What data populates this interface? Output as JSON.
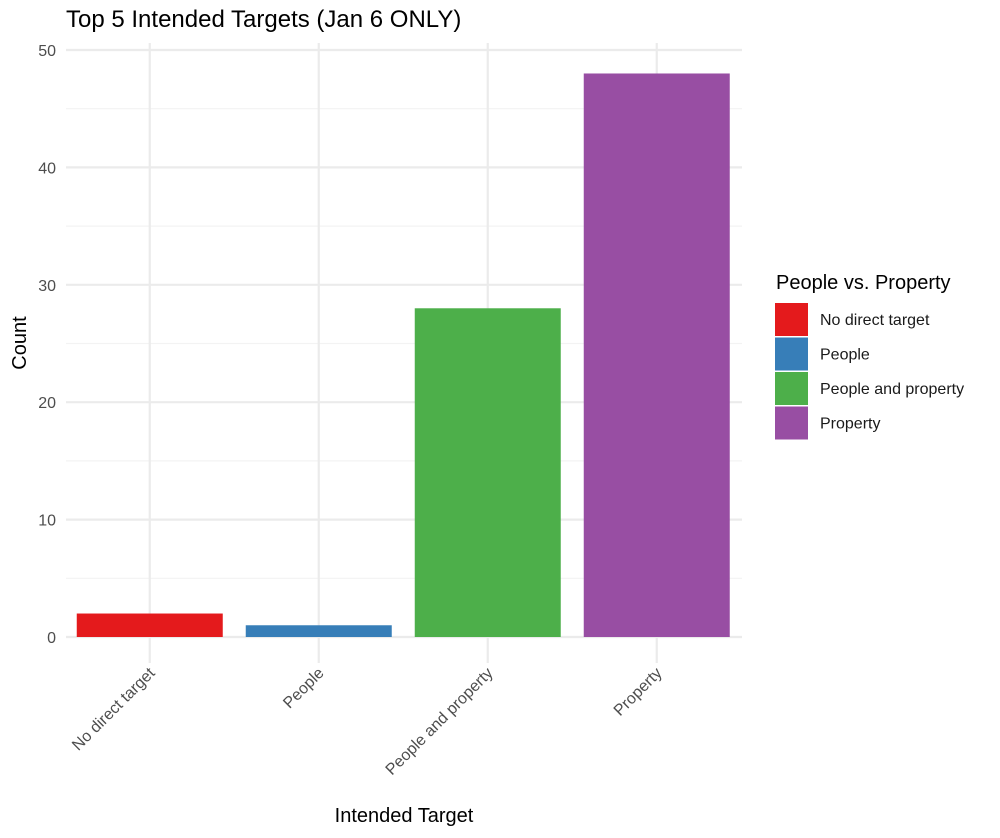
{
  "chart_data": {
    "type": "bar",
    "title": "Top 5 Intended Targets (Jan 6 ONLY)",
    "xlabel": "Intended Target",
    "ylabel": "Count",
    "categories": [
      "No direct target",
      "People",
      "People and property",
      "Property"
    ],
    "values": [
      2,
      1,
      28,
      48
    ],
    "colors": [
      "#e41a1c",
      "#377eb8",
      "#4daf4a",
      "#984ea3"
    ],
    "ylim": [
      0,
      50
    ],
    "yticks": [
      "0",
      "10",
      "20",
      "30",
      "40",
      "50"
    ],
    "grid": true,
    "legend": {
      "title": "People vs. Property",
      "position": "right",
      "entries": [
        "No direct target",
        "People",
        "People and property",
        "Property"
      ]
    }
  }
}
